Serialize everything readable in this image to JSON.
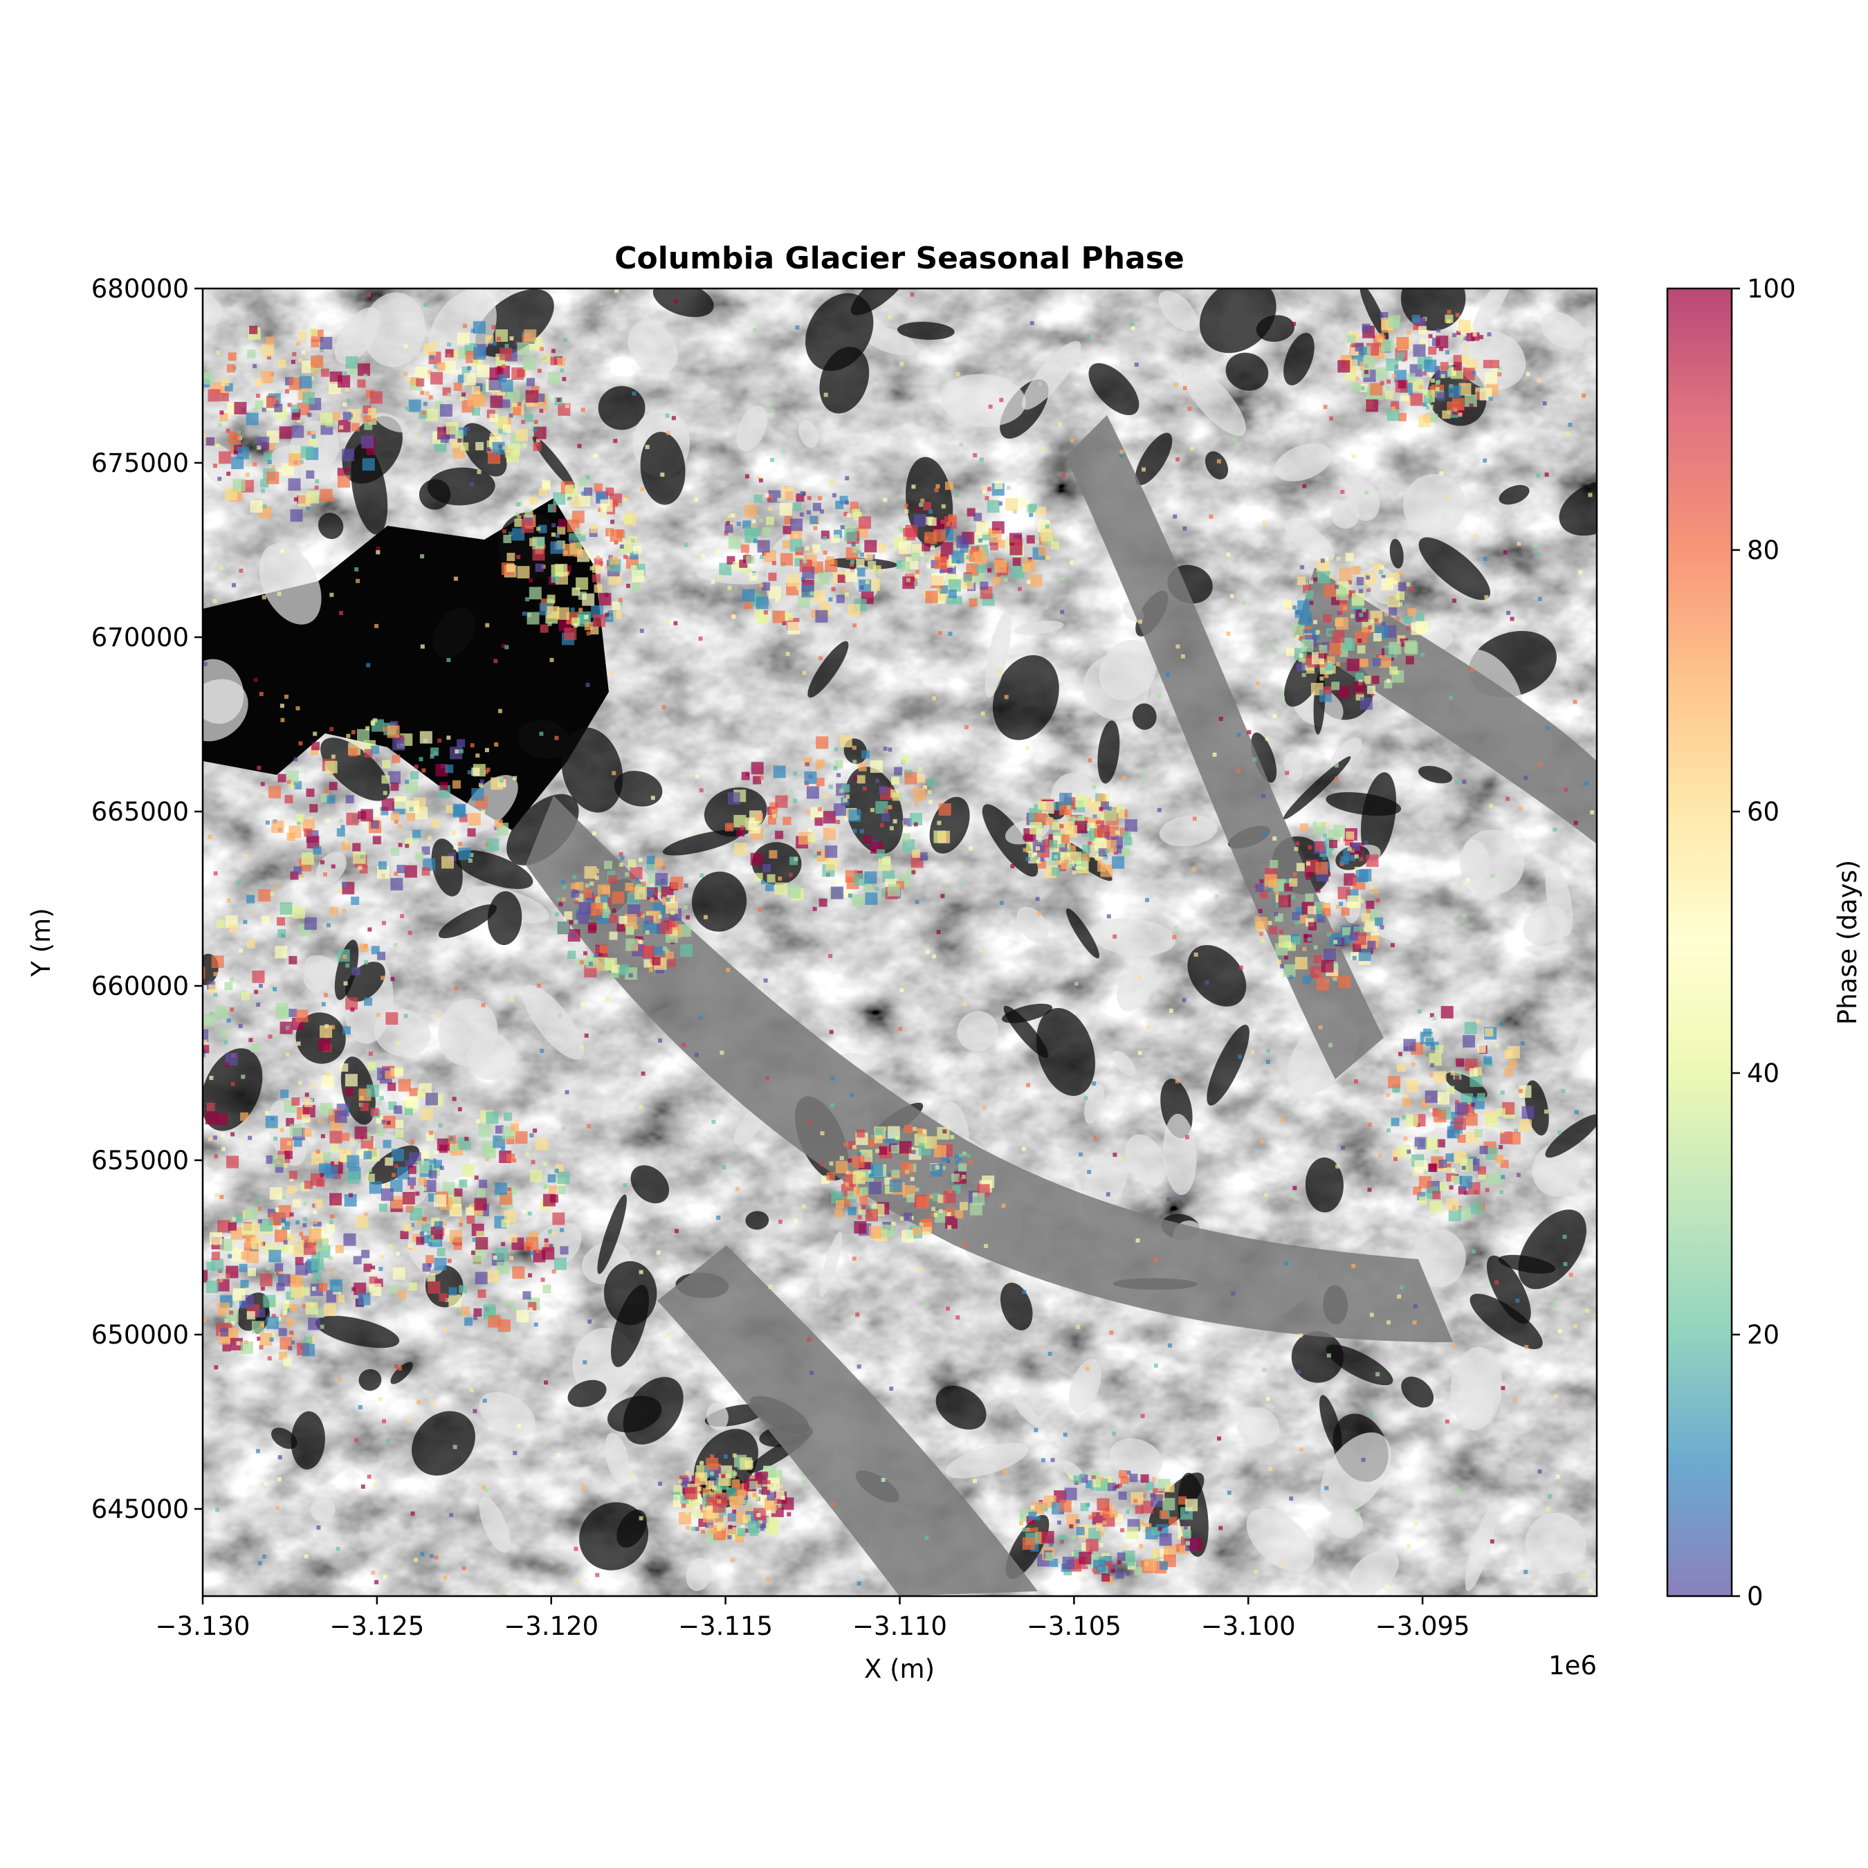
{
  "chart_data": {
    "type": "heatmap",
    "title": "Columbia Glacier Seasonal Phase",
    "xlabel": "X (m)",
    "ylabel": "Y (m)",
    "x_offset_label": "1e6",
    "xlim": [
      -3.13,
      -3.09
    ],
    "ylim": [
      642500,
      680000
    ],
    "xticks": [
      -3.13,
      -3.125,
      -3.12,
      -3.115,
      -3.11,
      -3.105,
      -3.1,
      -3.095
    ],
    "xtick_labels": [
      "−3.130",
      "−3.125",
      "−3.120",
      "−3.115",
      "−3.110",
      "−3.105",
      "−3.100",
      "−3.095"
    ],
    "yticks": [
      645000,
      650000,
      655000,
      660000,
      665000,
      670000,
      675000,
      680000
    ],
    "ytick_labels": [
      "645000",
      "650000",
      "655000",
      "660000",
      "665000",
      "670000",
      "675000",
      "680000"
    ],
    "colorbar": {
      "label": "Phase (days)",
      "range": [
        0,
        100
      ],
      "ticks": [
        0,
        20,
        40,
        60,
        80,
        100
      ],
      "tick_labels": [
        "0",
        "20",
        "40",
        "60",
        "80",
        "100"
      ],
      "colormap": "Spectral_r",
      "alpha": 0.7
    },
    "background": "grayscale satellite imagery (hillshade) of glacier terrain",
    "grid": false
  },
  "colors": {
    "spectral": [
      "#5e4fa2",
      "#3288bd",
      "#66c2a5",
      "#abdda4",
      "#e6f598",
      "#ffffbf",
      "#fee08b",
      "#fdae61",
      "#f46d43",
      "#d53e4f",
      "#9e0142"
    ]
  }
}
